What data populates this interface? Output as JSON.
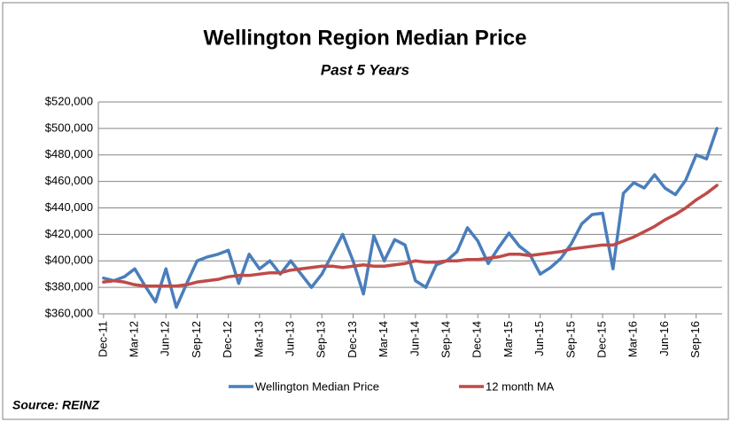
{
  "chart_data": {
    "type": "line",
    "title": "Wellington Region Median Price",
    "subtitle": "Past 5 Years",
    "source": "Source: REINZ",
    "categories": [
      "Dec-11",
      null,
      null,
      "Mar-12",
      null,
      null,
      "Jun-12",
      null,
      null,
      "Sep-12",
      null,
      null,
      "Dec-12",
      null,
      null,
      "Mar-13",
      null,
      null,
      "Jun-13",
      null,
      null,
      "Sep-13",
      null,
      null,
      "Dec-13",
      null,
      null,
      "Mar-14",
      null,
      null,
      "Jun-14",
      null,
      null,
      "Sep-14",
      null,
      null,
      "Dec-14",
      null,
      null,
      "Mar-15",
      null,
      null,
      "Jun-15",
      null,
      null,
      "Sep-15",
      null,
      null,
      "Dec-15",
      null,
      null,
      "Mar-16",
      null,
      null,
      "Jun-16",
      null,
      null,
      "Sep-16",
      null,
      null
    ],
    "series": [
      {
        "name": "Wellington Median Price",
        "color": "#4a7ebb",
        "values": [
          387000,
          385000,
          388000,
          394000,
          381000,
          369000,
          394000,
          365000,
          383000,
          400000,
          403000,
          405000,
          408000,
          383000,
          405000,
          394000,
          400000,
          390000,
          400000,
          390000,
          380000,
          390000,
          405000,
          420000,
          400000,
          375000,
          419000,
          400000,
          416000,
          412000,
          385000,
          380000,
          397000,
          400000,
          407000,
          425000,
          415000,
          398000,
          410000,
          421000,
          411000,
          405000,
          390000,
          395000,
          402000,
          413000,
          428000,
          435000,
          436000,
          394000,
          451000,
          459000,
          455000,
          465000,
          455000,
          450000,
          461000,
          480000,
          477000,
          500000
        ]
      },
      {
        "name": "12 month MA",
        "color": "#be4b48",
        "values": [
          384000,
          385000,
          384000,
          382000,
          381000,
          381000,
          381000,
          381000,
          382000,
          384000,
          385000,
          386000,
          388000,
          389000,
          389000,
          390000,
          391000,
          391000,
          393000,
          394000,
          395000,
          396000,
          396000,
          395000,
          396000,
          397000,
          396000,
          396000,
          397000,
          398000,
          400000,
          399000,
          399000,
          400000,
          400000,
          401000,
          401000,
          402000,
          403000,
          405000,
          405000,
          404000,
          405000,
          406000,
          407000,
          409000,
          410000,
          411000,
          412000,
          412000,
          415000,
          418000,
          422000,
          426000,
          431000,
          435000,
          440000,
          446000,
          451000,
          457000
        ]
      }
    ],
    "ylim": [
      360000,
      520000
    ],
    "yticks": [
      {
        "value": 360000,
        "label": "$360,000"
      },
      {
        "value": 380000,
        "label": "$380,000"
      },
      {
        "value": 400000,
        "label": "$400,000"
      },
      {
        "value": 420000,
        "label": "$420,000"
      },
      {
        "value": 440000,
        "label": "$440,000"
      },
      {
        "value": 460000,
        "label": "$460,000"
      },
      {
        "value": 480000,
        "label": "$480,000"
      },
      {
        "value": 500000,
        "label": "$500,000"
      },
      {
        "value": 520000,
        "label": "$520,000"
      }
    ],
    "grid": true
  }
}
